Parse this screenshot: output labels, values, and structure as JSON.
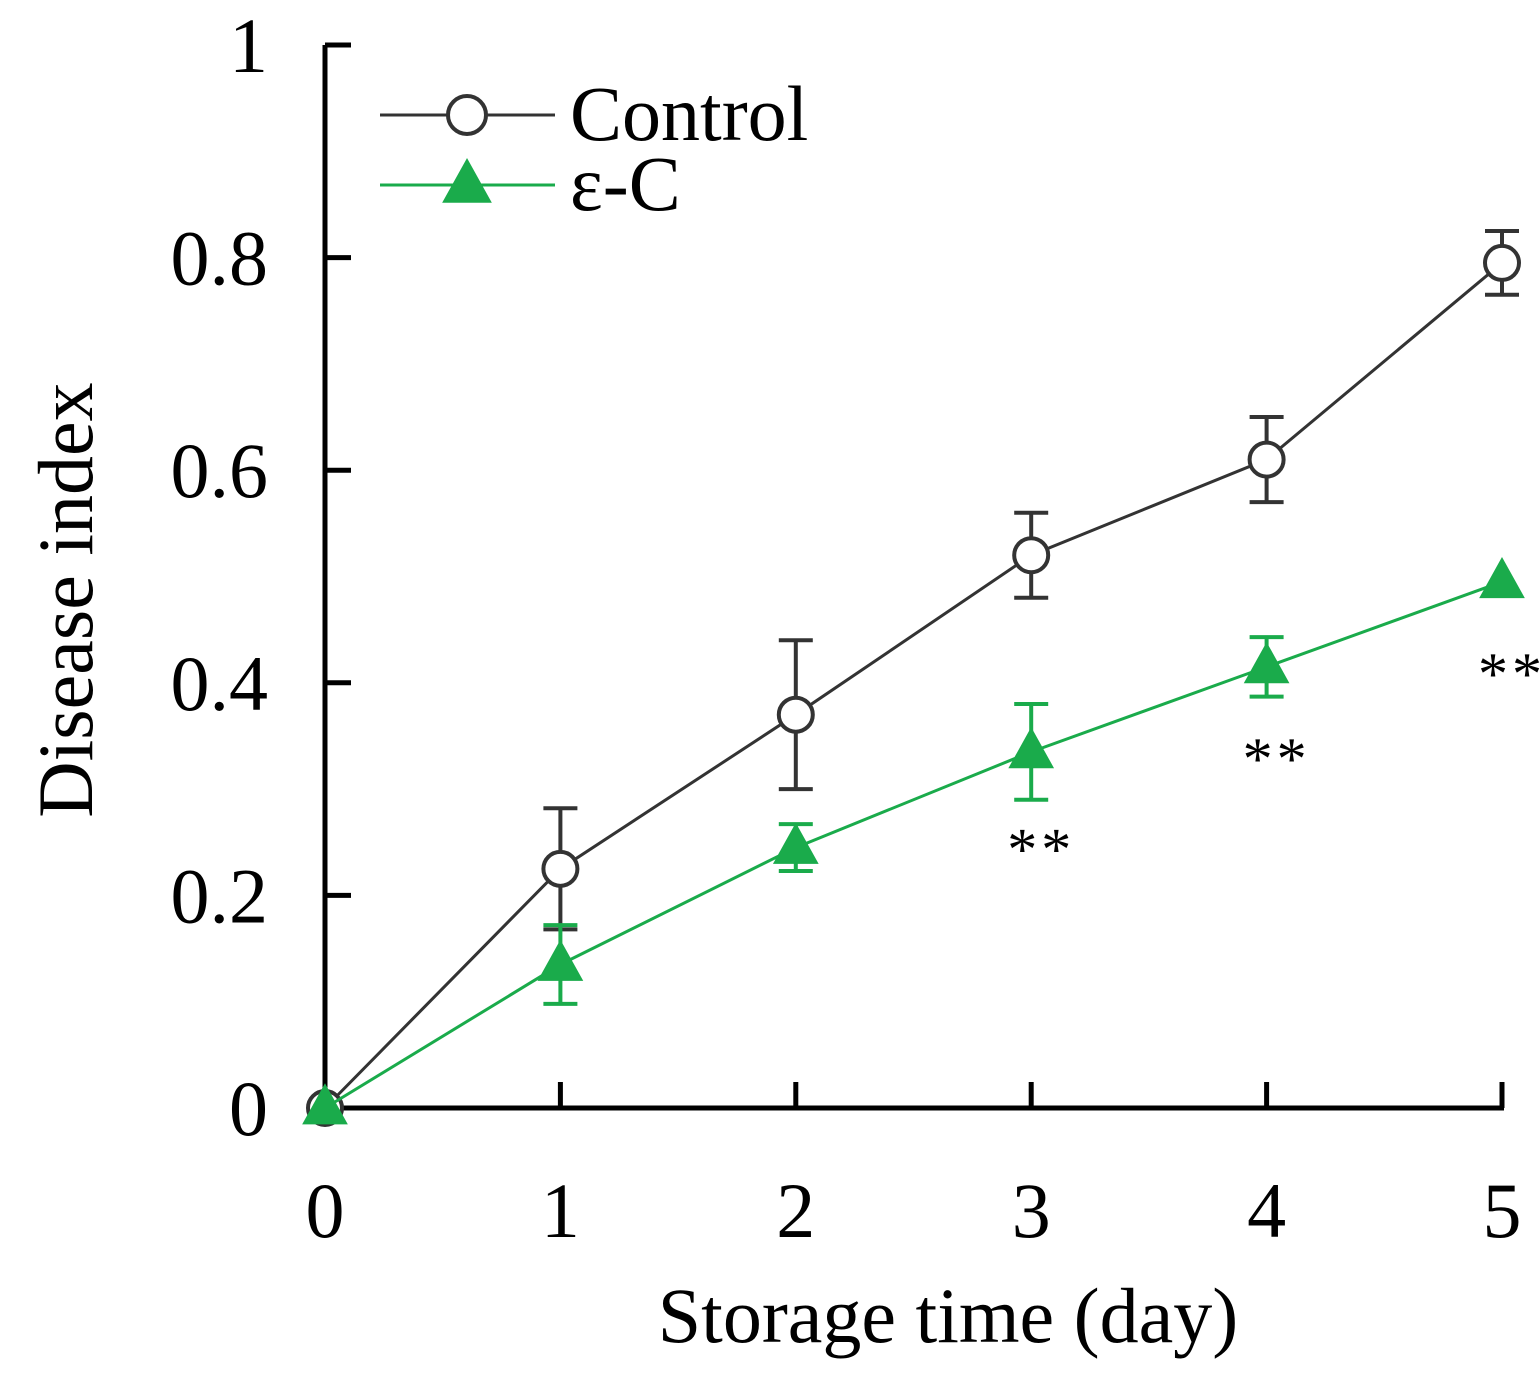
{
  "chart_data": {
    "type": "line",
    "xlabel": "Storage time (day)",
    "ylabel": "Disease index",
    "xlim": [
      0,
      5
    ],
    "ylim": [
      0,
      1
    ],
    "x_ticks": [
      0,
      1,
      2,
      3,
      4,
      5
    ],
    "y_ticks": [
      0,
      0.2,
      0.4,
      0.6,
      0.8,
      1
    ],
    "x_tick_labels": [
      "0",
      "1",
      "2",
      "3",
      "4",
      "5"
    ],
    "y_tick_labels": [
      "0",
      "0.2",
      "0.4",
      "0.6",
      "0.8",
      "1"
    ],
    "grid": false,
    "legend_position": "top-left",
    "series": [
      {
        "name": "Control",
        "color": "#333333",
        "marker": "open-circle",
        "x": [
          0,
          1,
          2,
          3,
          4,
          5
        ],
        "values": [
          0,
          0.225,
          0.37,
          0.52,
          0.61,
          0.795
        ],
        "errors": [
          0,
          0.057,
          0.07,
          0.04,
          0.04,
          0.03
        ]
      },
      {
        "name": "ε-C",
        "color": "#1aab4b",
        "marker": "filled-triangle",
        "x": [
          0,
          1,
          2,
          3,
          4,
          5
        ],
        "values": [
          0,
          0.135,
          0.245,
          0.335,
          0.415,
          0.495
        ],
        "errors": [
          0,
          0.037,
          0.022,
          0.045,
          0.028,
          0
        ]
      }
    ],
    "annotations": [
      {
        "text": "**",
        "x": 3,
        "y": 0.245
      },
      {
        "text": "**",
        "x": 4,
        "y": 0.33
      },
      {
        "text": "**",
        "x": 5,
        "y": 0.41
      }
    ]
  }
}
